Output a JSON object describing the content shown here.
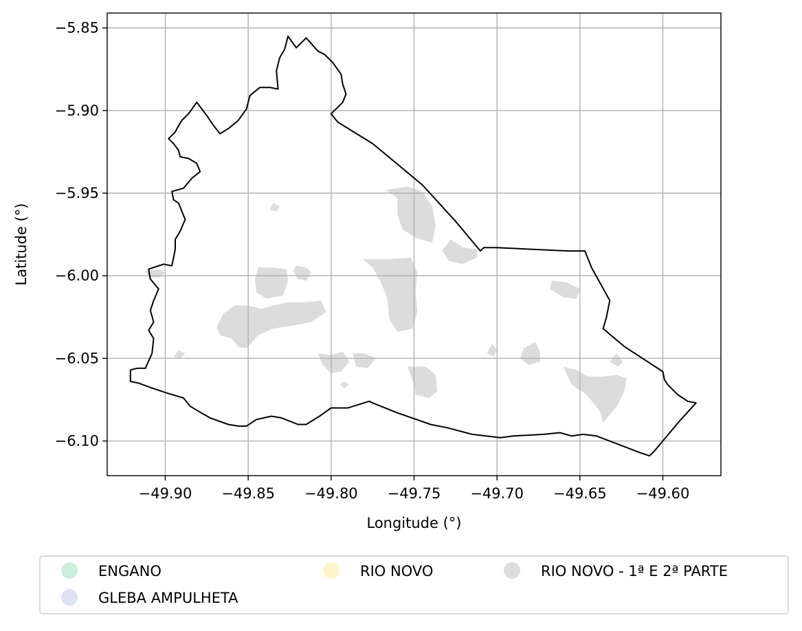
{
  "chart_data": {
    "type": "map",
    "xlabel": "Longitude (°)",
    "ylabel": "Latitude (°)",
    "xlim": [
      -49.935,
      -49.565
    ],
    "ylim": [
      -6.121,
      -5.841
    ],
    "xticks": [
      -49.9,
      -49.85,
      -49.8,
      -49.75,
      -49.7,
      -49.65,
      -49.6
    ],
    "xtick_labels": [
      "−49.90",
      "−49.85",
      "−49.80",
      "−49.75",
      "−49.70",
      "−49.65",
      "−49.60"
    ],
    "yticks": [
      -5.85,
      -5.9,
      -5.95,
      -6.0,
      -6.05,
      -6.1
    ],
    "ytick_labels": [
      "−5.85",
      "−5.90",
      "−5.95",
      "−6.00",
      "−6.05",
      "−6.10"
    ],
    "grid": true,
    "legend_position": "bottom",
    "legend": [
      {
        "label": "ENGANO",
        "color": "#cdeedb"
      },
      {
        "label": "GLEBA AMPULHETA",
        "color": "#dde3f2"
      },
      {
        "label": "RIO NOVO",
        "color": "#fff4cc"
      },
      {
        "label": "RIO NOVO - 1ª E 2ª PARTE",
        "color": "#dcdcdc"
      }
    ],
    "boundary": [
      [
        -49.921,
        -6.064
      ],
      [
        -49.921,
        -6.057
      ],
      [
        -49.917,
        -6.056
      ],
      [
        -49.912,
        -6.056
      ],
      [
        -49.908,
        -6.047
      ],
      [
        -49.907,
        -6.038
      ],
      [
        -49.91,
        -6.033
      ],
      [
        -49.907,
        -6.028
      ],
      [
        -49.909,
        -6.021
      ],
      [
        -49.907,
        -6.015
      ],
      [
        -49.904,
        -6.008
      ],
      [
        -49.909,
        -6.002
      ],
      [
        -49.91,
        -5.996
      ],
      [
        -49.901,
        -5.993
      ],
      [
        -49.896,
        -5.994
      ],
      [
        -49.894,
        -5.984
      ],
      [
        -49.894,
        -5.978
      ],
      [
        -49.891,
        -5.973
      ],
      [
        -49.888,
        -5.966
      ],
      [
        -49.892,
        -5.956
      ],
      [
        -49.895,
        -5.954
      ],
      [
        -49.896,
        -5.949
      ],
      [
        -49.889,
        -5.947
      ],
      [
        -49.884,
        -5.941
      ],
      [
        -49.879,
        -5.937
      ],
      [
        -49.881,
        -5.932
      ],
      [
        -49.886,
        -5.929
      ],
      [
        -49.891,
        -5.928
      ],
      [
        -49.892,
        -5.924
      ],
      [
        -49.895,
        -5.92
      ],
      [
        -49.898,
        -5.917
      ],
      [
        -49.894,
        -5.913
      ],
      [
        -49.893,
        -5.911
      ],
      [
        -49.89,
        -5.906
      ],
      [
        -49.886,
        -5.902
      ],
      [
        -49.881,
        -5.895
      ],
      [
        -49.875,
        -5.903
      ],
      [
        -49.871,
        -5.909
      ],
      [
        -49.867,
        -5.914
      ],
      [
        -49.862,
        -5.911
      ],
      [
        -49.856,
        -5.906
      ],
      [
        -49.851,
        -5.899
      ],
      [
        -49.849,
        -5.891
      ],
      [
        -49.843,
        -5.886
      ],
      [
        -49.837,
        -5.886
      ],
      [
        -49.832,
        -5.887
      ],
      [
        -49.833,
        -5.876
      ],
      [
        -49.831,
        -5.868
      ],
      [
        -49.828,
        -5.863
      ],
      [
        -49.826,
        -5.855
      ],
      [
        -49.821,
        -5.862
      ],
      [
        -49.815,
        -5.856
      ],
      [
        -49.808,
        -5.864
      ],
      [
        -49.804,
        -5.866
      ],
      [
        -49.799,
        -5.871
      ],
      [
        -49.794,
        -5.878
      ],
      [
        -49.793,
        -5.884
      ],
      [
        -49.791,
        -5.89
      ],
      [
        -49.793,
        -5.895
      ],
      [
        -49.8,
        -5.902
      ],
      [
        -49.796,
        -5.907
      ],
      [
        -49.775,
        -5.92
      ],
      [
        -49.745,
        -5.945
      ],
      [
        -49.725,
        -5.967
      ],
      [
        -49.71,
        -5.985
      ],
      [
        -49.708,
        -5.983
      ],
      [
        -49.7,
        -5.983
      ],
      [
        -49.657,
        -5.985
      ],
      [
        -49.647,
        -5.985
      ],
      [
        -49.643,
        -5.995
      ],
      [
        -49.632,
        -6.015
      ],
      [
        -49.633,
        -6.02
      ],
      [
        -49.634,
        -6.025
      ],
      [
        -49.636,
        -6.032
      ],
      [
        -49.623,
        -6.043
      ],
      [
        -49.6,
        -6.058
      ],
      [
        -49.599,
        -6.063
      ],
      [
        -49.597,
        -6.066
      ],
      [
        -49.591,
        -6.072
      ],
      [
        -49.585,
        -6.076
      ],
      [
        -49.58,
        -6.077
      ],
      [
        -49.59,
        -6.088
      ],
      [
        -49.6,
        -6.1
      ],
      [
        -49.605,
        -6.106
      ],
      [
        -49.608,
        -6.109
      ],
      [
        -49.614,
        -6.107
      ],
      [
        -49.627,
        -6.102
      ],
      [
        -49.64,
        -6.097
      ],
      [
        -49.648,
        -6.096
      ],
      [
        -49.655,
        -6.097
      ],
      [
        -49.662,
        -6.095
      ],
      [
        -49.672,
        -6.096
      ],
      [
        -49.69,
        -6.097
      ],
      [
        -49.698,
        -6.098
      ],
      [
        -49.715,
        -6.096
      ],
      [
        -49.73,
        -6.092
      ],
      [
        -49.74,
        -6.09
      ],
      [
        -49.76,
        -6.083
      ],
      [
        -49.775,
        -6.077
      ],
      [
        -49.777,
        -6.076
      ],
      [
        -49.79,
        -6.08
      ],
      [
        -49.8,
        -6.08
      ],
      [
        -49.807,
        -6.085
      ],
      [
        -49.815,
        -6.09
      ],
      [
        -49.82,
        -6.09
      ],
      [
        -49.83,
        -6.086
      ],
      [
        -49.836,
        -6.085
      ],
      [
        -49.845,
        -6.087
      ],
      [
        -49.851,
        -6.091
      ],
      [
        -49.856,
        -6.091
      ],
      [
        -49.862,
        -6.09
      ],
      [
        -49.873,
        -6.086
      ],
      [
        -49.88,
        -6.082
      ],
      [
        -49.885,
        -6.079
      ],
      [
        -49.889,
        -6.074
      ],
      [
        -49.899,
        -6.071
      ],
      [
        -49.908,
        -6.068
      ],
      [
        -49.916,
        -6.065
      ],
      [
        -49.921,
        -6.064
      ]
    ],
    "regions": [
      {
        "name": "RIO NOVO - 1ª E 2ª PARTE",
        "color": "#dcdcdc",
        "polygons": [
          [
            [
              -49.865,
              -6.023
            ],
            [
              -49.858,
              -6.018
            ],
            [
              -49.85,
              -6.018
            ],
            [
              -49.842,
              -6.02
            ],
            [
              -49.835,
              -6.018
            ],
            [
              -49.826,
              -6.016
            ],
            [
              -49.814,
              -6.016
            ],
            [
              -49.806,
              -6.015
            ],
            [
              -49.803,
              -6.022
            ],
            [
              -49.812,
              -6.028
            ],
            [
              -49.822,
              -6.03
            ],
            [
              -49.835,
              -6.032
            ],
            [
              -49.844,
              -6.036
            ],
            [
              -49.851,
              -6.044
            ],
            [
              -49.856,
              -6.043
            ],
            [
              -49.86,
              -6.038
            ],
            [
              -49.867,
              -6.036
            ],
            [
              -49.869,
              -6.031
            ]
          ],
          [
            [
              -49.844,
              -5.995
            ],
            [
              -49.836,
              -5.995
            ],
            [
              -49.827,
              -5.996
            ],
            [
              -49.826,
              -6.003
            ],
            [
              -49.829,
              -6.012
            ],
            [
              -49.839,
              -6.014
            ],
            [
              -49.845,
              -6.01
            ],
            [
              -49.846,
              -6.002
            ]
          ],
          [
            [
              -49.767,
              -5.99
            ],
            [
              -49.752,
              -5.989
            ],
            [
              -49.748,
              -5.998
            ],
            [
              -49.749,
              -6.01
            ],
            [
              -49.748,
              -6.022
            ],
            [
              -49.751,
              -6.032
            ],
            [
              -49.76,
              -6.034
            ],
            [
              -49.765,
              -6.026
            ],
            [
              -49.766,
              -6.014
            ],
            [
              -49.77,
              -6.004
            ],
            [
              -49.775,
              -5.995
            ],
            [
              -49.781,
              -5.99
            ]
          ],
          [
            [
              -49.767,
              -5.948
            ],
            [
              -49.76,
              -5.953
            ],
            [
              -49.76,
              -5.963
            ],
            [
              -49.757,
              -5.972
            ],
            [
              -49.749,
              -5.977
            ],
            [
              -49.739,
              -5.98
            ],
            [
              -49.737,
              -5.97
            ],
            [
              -49.739,
              -5.958
            ],
            [
              -49.745,
              -5.949
            ],
            [
              -49.754,
              -5.946
            ]
          ],
          [
            [
              -49.728,
              -5.978
            ],
            [
              -49.72,
              -5.983
            ],
            [
              -49.712,
              -5.984
            ],
            [
              -49.712,
              -5.989
            ],
            [
              -49.721,
              -5.993
            ],
            [
              -49.729,
              -5.991
            ],
            [
              -49.733,
              -5.985
            ]
          ],
          [
            [
              -49.754,
              -6.055
            ],
            [
              -49.75,
              -6.066
            ],
            [
              -49.749,
              -6.072
            ],
            [
              -49.741,
              -6.074
            ],
            [
              -49.736,
              -6.07
            ],
            [
              -49.737,
              -6.06
            ],
            [
              -49.743,
              -6.055
            ]
          ],
          [
            [
              -49.808,
              -6.047
            ],
            [
              -49.8,
              -6.048
            ],
            [
              -49.793,
              -6.046
            ],
            [
              -49.789,
              -6.052
            ],
            [
              -49.794,
              -6.058
            ],
            [
              -49.8,
              -6.059
            ],
            [
              -49.805,
              -6.054
            ]
          ],
          [
            [
              -49.787,
              -6.047
            ],
            [
              -49.78,
              -6.047
            ],
            [
              -49.773,
              -6.05
            ],
            [
              -49.778,
              -6.056
            ],
            [
              -49.785,
              -6.055
            ]
          ],
          [
            [
              -49.66,
              -6.055
            ],
            [
              -49.655,
              -6.066
            ],
            [
              -49.646,
              -6.072
            ],
            [
              -49.638,
              -6.082
            ],
            [
              -49.636,
              -6.089
            ],
            [
              -49.627,
              -6.078
            ],
            [
              -49.623,
              -6.069
            ],
            [
              -49.622,
              -6.062
            ],
            [
              -49.628,
              -6.06
            ],
            [
              -49.636,
              -6.061
            ],
            [
              -49.645,
              -6.061
            ],
            [
              -49.652,
              -6.057
            ]
          ],
          [
            [
              -49.677,
              -6.04
            ],
            [
              -49.674,
              -6.046
            ],
            [
              -49.674,
              -6.052
            ],
            [
              -49.681,
              -6.054
            ],
            [
              -49.686,
              -6.05
            ],
            [
              -49.684,
              -6.044
            ]
          ],
          [
            [
              -49.667,
              -6.003
            ],
            [
              -49.658,
              -6.004
            ],
            [
              -49.65,
              -6.008
            ],
            [
              -49.652,
              -6.014
            ],
            [
              -49.66,
              -6.013
            ],
            [
              -49.668,
              -6.008
            ]
          ],
          [
            [
              -49.703,
              -6.041
            ],
            [
              -49.7,
              -6.045
            ],
            [
              -49.702,
              -6.049
            ],
            [
              -49.706,
              -6.047
            ]
          ],
          [
            [
              -49.628,
              -6.047
            ],
            [
              -49.624,
              -6.052
            ],
            [
              -49.627,
              -6.055
            ],
            [
              -49.632,
              -6.052
            ]
          ],
          [
            [
              -49.892,
              -6.045
            ],
            [
              -49.888,
              -6.047
            ],
            [
              -49.891,
              -6.05
            ],
            [
              -49.895,
              -6.049
            ]
          ],
          [
            [
              -49.835,
              -5.956
            ],
            [
              -49.831,
              -5.958
            ],
            [
              -49.833,
              -5.961
            ],
            [
              -49.837,
              -5.96
            ]
          ],
          [
            [
              -49.792,
              -6.064
            ],
            [
              -49.789,
              -6.066
            ],
            [
              -49.792,
              -6.068
            ],
            [
              -49.795,
              -6.066
            ]
          ],
          [
            [
              -49.912,
              -5.997
            ],
            [
              -49.904,
              -5.996
            ],
            [
              -49.9,
              -5.998
            ],
            [
              -49.903,
              -6.001
            ],
            [
              -49.91,
              -6.001
            ]
          ],
          [
            [
              -49.821,
              -5.994
            ],
            [
              -49.815,
              -5.995
            ],
            [
              -49.812,
              -5.998
            ],
            [
              -49.815,
              -6.003
            ],
            [
              -49.82,
              -6.002
            ],
            [
              -49.823,
              -5.997
            ]
          ]
        ]
      }
    ]
  }
}
